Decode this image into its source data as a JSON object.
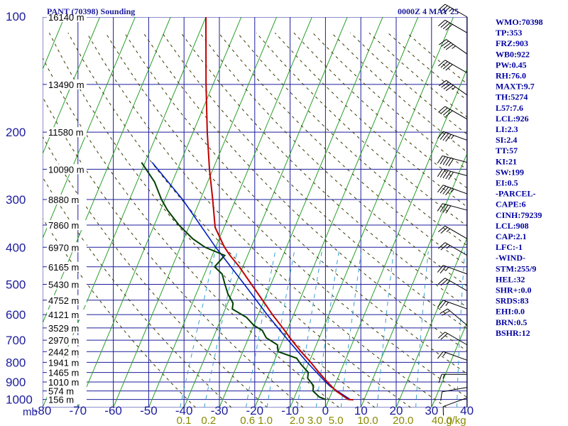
{
  "header": {
    "title": "PANT (70398) Sounding",
    "datetime": "0000Z  4 MAY 25"
  },
  "colors": {
    "isobar_grid": "#1c1c9c",
    "isotherm": "#2aa02a",
    "dry_adiabat": "#3a3a00",
    "mixing_ratio": "#3aa0d0",
    "temperature": "#c00000",
    "dewpoint": "#004000",
    "parcel": "#0020c0",
    "axis_text": "#1c1c9c",
    "mixing_text": "#8a8a00",
    "index_text": "#0000a0"
  },
  "chart_data": {
    "type": "skew-t",
    "xlabel": "",
    "ylabel": "mb",
    "pressure_levels": [
      {
        "p": 100,
        "label": "100"
      },
      {
        "p": 200,
        "label": "200"
      },
      {
        "p": 300,
        "label": "300"
      },
      {
        "p": 400,
        "label": "400"
      },
      {
        "p": 500,
        "label": "500"
      },
      {
        "p": 600,
        "label": "600"
      },
      {
        "p": 700,
        "label": "700"
      },
      {
        "p": 800,
        "label": "800"
      },
      {
        "p": 900,
        "label": "900"
      },
      {
        "p": 1000,
        "label": "1000"
      }
    ],
    "temperature_ticks": [
      -80,
      -70,
      -60,
      -50,
      -40,
      -30,
      -20,
      -10,
      0,
      10,
      20,
      30,
      40
    ],
    "temperature_tick_labels": [
      "-80",
      "-70",
      "-60",
      "-50",
      "-40",
      "-30",
      "-20",
      "-10",
      "0",
      "10",
      "20",
      "30",
      "40"
    ],
    "mixing_ratio_labels": [
      {
        "w": 0.1,
        "label": "0.1",
        "p_ref": 1000,
        "t_ref": -41
      },
      {
        "w": 0.2,
        "label": "0.2",
        "p_ref": 1000,
        "t_ref": -34
      },
      {
        "w": 0.6,
        "label": "0.6",
        "p_ref": 1000,
        "t_ref": -23
      },
      {
        "w": 1.0,
        "label": "1.0",
        "p_ref": 1000,
        "t_ref": -18
      },
      {
        "w": 2.0,
        "label": "2.0",
        "p_ref": 1000,
        "t_ref": -9
      },
      {
        "w": 3.0,
        "label": "3.0",
        "p_ref": 1000,
        "t_ref": -4
      },
      {
        "w": 5.0,
        "label": "5.0",
        "p_ref": 1000,
        "t_ref": 2
      },
      {
        "w": 10.0,
        "label": "10.0",
        "p_ref": 1000,
        "t_ref": 11
      },
      {
        "w": 20.0,
        "label": "20.0",
        "p_ref": 1000,
        "t_ref": 21
      },
      {
        "w": 40.0,
        "label": "40.0",
        "p_ref": 1000,
        "t_ref": 32
      },
      {
        "w": 0,
        "label": "g/kg",
        "p_ref": 1000,
        "t_ref": 36
      }
    ],
    "height_labels": [
      {
        "p": 100,
        "label": "16140 m"
      },
      {
        "p": 150,
        "label": "13490 m"
      },
      {
        "p": 200,
        "label": "11580 m"
      },
      {
        "p": 250,
        "label": "10090 m"
      },
      {
        "p": 300,
        "label": "8880 m"
      },
      {
        "p": 350,
        "label": "7860 m"
      },
      {
        "p": 400,
        "label": "6970 m"
      },
      {
        "p": 450,
        "label": "6165 m"
      },
      {
        "p": 500,
        "label": "5430 m"
      },
      {
        "p": 550,
        "label": "4752 m"
      },
      {
        "p": 600,
        "label": "4121 m"
      },
      {
        "p": 650,
        "label": "3529 m"
      },
      {
        "p": 700,
        "label": "2970 m"
      },
      {
        "p": 750,
        "label": "2442 m"
      },
      {
        "p": 800,
        "label": "1941 m"
      },
      {
        "p": 850,
        "label": "1465 m"
      },
      {
        "p": 900,
        "label": "1010 m"
      },
      {
        "p": 950,
        "label": "574 m"
      },
      {
        "p": 1000,
        "label": "156 m"
      }
    ],
    "temperature_profile": [
      {
        "p": 1002,
        "t": 7.0
      },
      {
        "p": 1000,
        "t": 5.5
      },
      {
        "p": 950,
        "t": 1.0
      },
      {
        "p": 900,
        "t": -2.5
      },
      {
        "p": 850,
        "t": -6.0
      },
      {
        "p": 800,
        "t": -9.5
      },
      {
        "p": 750,
        "t": -13.5
      },
      {
        "p": 700,
        "t": -17.5
      },
      {
        "p": 650,
        "t": -21.5
      },
      {
        "p": 600,
        "t": -26.0
      },
      {
        "p": 550,
        "t": -30.5
      },
      {
        "p": 500,
        "t": -35.5
      },
      {
        "p": 450,
        "t": -41.0
      },
      {
        "p": 420,
        "t": -45.0
      },
      {
        "p": 400,
        "t": -47.5
      },
      {
        "p": 355,
        "t": -52.5
      },
      {
        "p": 300,
        "t": -56.5
      },
      {
        "p": 250,
        "t": -61.0
      },
      {
        "p": 200,
        "t": -66.0
      },
      {
        "p": 150,
        "t": -72.0
      },
      {
        "p": 100,
        "t": -80.0
      }
    ],
    "dewpoint_profile": [
      {
        "p": 1000,
        "t": -1.0
      },
      {
        "p": 985,
        "t": -3.0
      },
      {
        "p": 950,
        "t": -5.5
      },
      {
        "p": 920,
        "t": -6.0
      },
      {
        "p": 880,
        "t": -8.5
      },
      {
        "p": 850,
        "t": -9.0
      },
      {
        "p": 810,
        "t": -12.0
      },
      {
        "p": 780,
        "t": -14.0
      },
      {
        "p": 750,
        "t": -20.0
      },
      {
        "p": 720,
        "t": -21.0
      },
      {
        "p": 690,
        "t": -25.0
      },
      {
        "p": 660,
        "t": -27.0
      },
      {
        "p": 640,
        "t": -30.0
      },
      {
        "p": 610,
        "t": -33.0
      },
      {
        "p": 580,
        "t": -38.0
      },
      {
        "p": 560,
        "t": -38.5
      },
      {
        "p": 530,
        "t": -41.0
      },
      {
        "p": 500,
        "t": -43.0
      },
      {
        "p": 470,
        "t": -45.0
      },
      {
        "p": 450,
        "t": -48.0
      },
      {
        "p": 420,
        "t": -46.5
      },
      {
        "p": 400,
        "t": -53.0
      },
      {
        "p": 380,
        "t": -57.5
      },
      {
        "p": 350,
        "t": -63.0
      },
      {
        "p": 320,
        "t": -68.0
      },
      {
        "p": 300,
        "t": -71.0
      },
      {
        "p": 270,
        "t": -75.0
      },
      {
        "p": 240,
        "t": -81.0
      }
    ],
    "parcel_profile": [
      {
        "p": 1000,
        "t": 6.0
      },
      {
        "p": 926,
        "t": -1.0
      },
      {
        "p": 900,
        "t": -3.0
      },
      {
        "p": 800,
        "t": -10.5
      },
      {
        "p": 700,
        "t": -18.5
      },
      {
        "p": 600,
        "t": -27.5
      },
      {
        "p": 500,
        "t": -37.5
      },
      {
        "p": 400,
        "t": -50.0
      },
      {
        "p": 300,
        "t": -65.0
      },
      {
        "p": 240,
        "t": -78.0
      }
    ],
    "wind_barbs": [
      {
        "p": 100,
        "dir": 300,
        "spd": 35
      },
      {
        "p": 110,
        "dir": 300,
        "spd": 40
      },
      {
        "p": 125,
        "dir": 305,
        "spd": 45
      },
      {
        "p": 140,
        "dir": 300,
        "spd": 40
      },
      {
        "p": 160,
        "dir": 305,
        "spd": 45
      },
      {
        "p": 185,
        "dir": 300,
        "spd": 40
      },
      {
        "p": 210,
        "dir": 290,
        "spd": 45
      },
      {
        "p": 240,
        "dir": 285,
        "spd": 50
      },
      {
        "p": 260,
        "dir": 285,
        "spd": 50
      },
      {
        "p": 290,
        "dir": 290,
        "spd": 45
      },
      {
        "p": 320,
        "dir": 285,
        "spd": 40
      },
      {
        "p": 380,
        "dir": 300,
        "spd": 25
      },
      {
        "p": 420,
        "dir": 300,
        "spd": 25
      },
      {
        "p": 470,
        "dir": 290,
        "spd": 25
      },
      {
        "p": 520,
        "dir": 300,
        "spd": 25
      },
      {
        "p": 580,
        "dir": 290,
        "spd": 25
      },
      {
        "p": 640,
        "dir": 310,
        "spd": 20
      },
      {
        "p": 720,
        "dir": 300,
        "spd": 20
      },
      {
        "p": 790,
        "dir": 290,
        "spd": 15
      },
      {
        "p": 860,
        "dir": 270,
        "spd": 15
      },
      {
        "p": 930,
        "dir": 260,
        "spd": 10
      },
      {
        "p": 990,
        "dir": 250,
        "spd": 10
      }
    ],
    "grid": true,
    "xlim": [
      -80,
      40
    ],
    "ylim": [
      1050,
      100
    ]
  },
  "indices": [
    "WMO:70398",
    "TP:353",
    "FRZ:903",
    "WB0:922",
    "PW:0.45",
    "RH:76.0",
    "MAXT:9.7",
    "TH:5274",
    "L57:7.6",
    "LCL:926",
    "LI:2.3",
    "SI:2.4",
    "TT:57",
    "KI:21",
    "SW:199",
    "EI:0.5",
    "-PARCEL-",
    "CAPE:6",
    "CINH:79239",
    "LCL:908",
    "CAP:2.1",
    "LFC:-1",
    "-WIND-",
    "STM:255/9",
    "HEL:32",
    "SHR+:0.0",
    "SRDS:83",
    "EHI:0.0",
    "BRN:0.5",
    "BSHR:12"
  ]
}
